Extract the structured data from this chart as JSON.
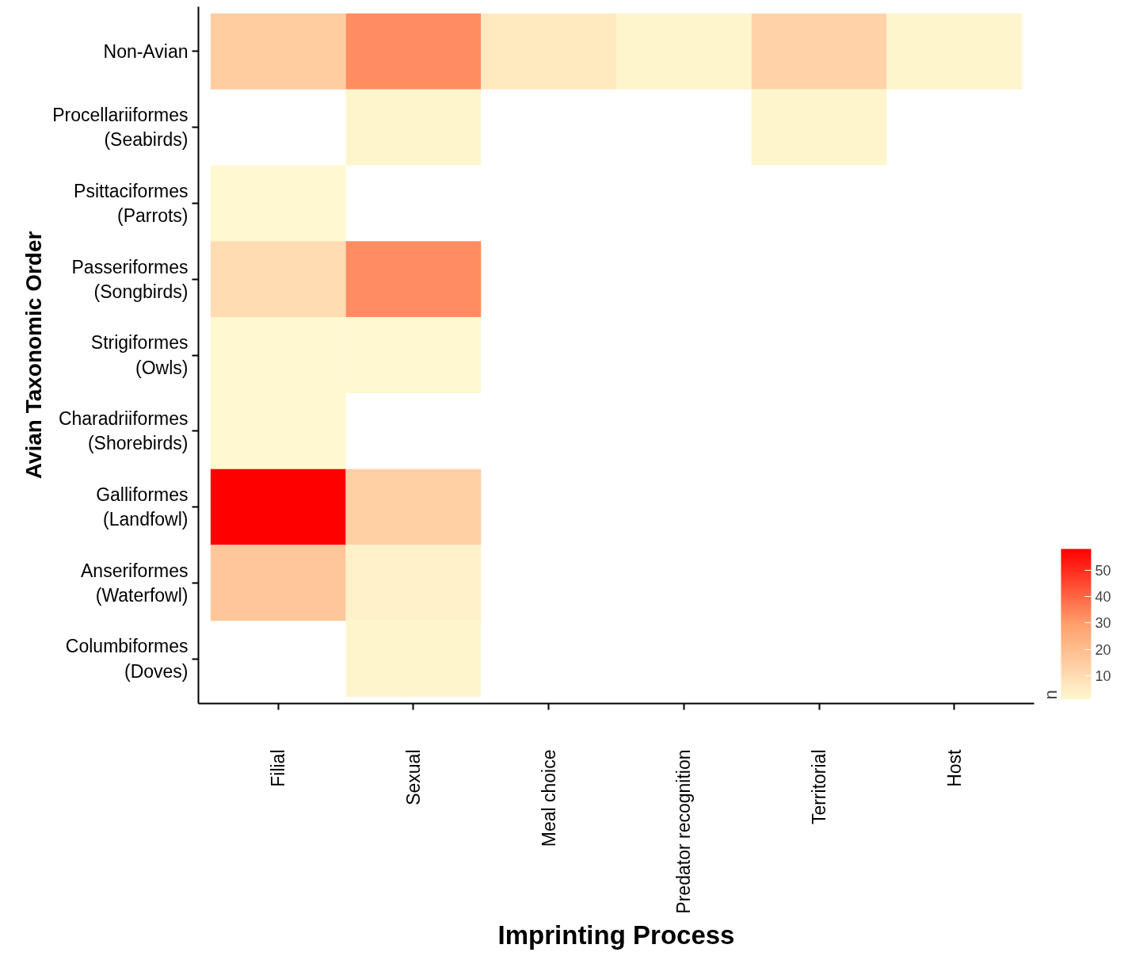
{
  "chart_data": {
    "type": "heatmap",
    "xlabel": "Imprinting Process",
    "ylabel": "Avian Taxonomic Order",
    "clabel": "n",
    "categories": [
      "Filial",
      "Sexual",
      "Meal choice",
      "Predator recognition",
      "Territorial",
      "Host"
    ],
    "y_categories": [
      "Non-Avian",
      "Procellariiformes\n(Seabirds)",
      "Psittaciformes\n(Parrots)",
      "Passeriformes\n(Songbirds)",
      "Strigiformes\n(Owls)",
      "Charadriiformes\n(Shorebirds)",
      "Galliformes\n(Landfowl)",
      "Anseriformes\n(Waterfowl)",
      "Columbiformes\n(Doves)"
    ],
    "cells": [
      [
        15,
        33,
        6,
        2,
        13,
        2
      ],
      [
        null,
        2,
        null,
        null,
        2,
        null
      ],
      [
        1,
        null,
        null,
        null,
        null,
        null
      ],
      [
        10,
        33,
        null,
        null,
        null,
        null
      ],
      [
        1,
        1,
        null,
        null,
        null,
        null
      ],
      [
        1,
        null,
        null,
        null,
        null,
        null
      ],
      [
        58,
        14,
        null,
        null,
        null,
        null
      ],
      [
        17,
        3,
        null,
        null,
        null,
        null
      ],
      [
        null,
        2,
        null,
        null,
        null,
        null
      ]
    ],
    "clim": [
      1,
      58
    ],
    "cticks": [
      10,
      20,
      30,
      40,
      50
    ],
    "grid": false
  }
}
